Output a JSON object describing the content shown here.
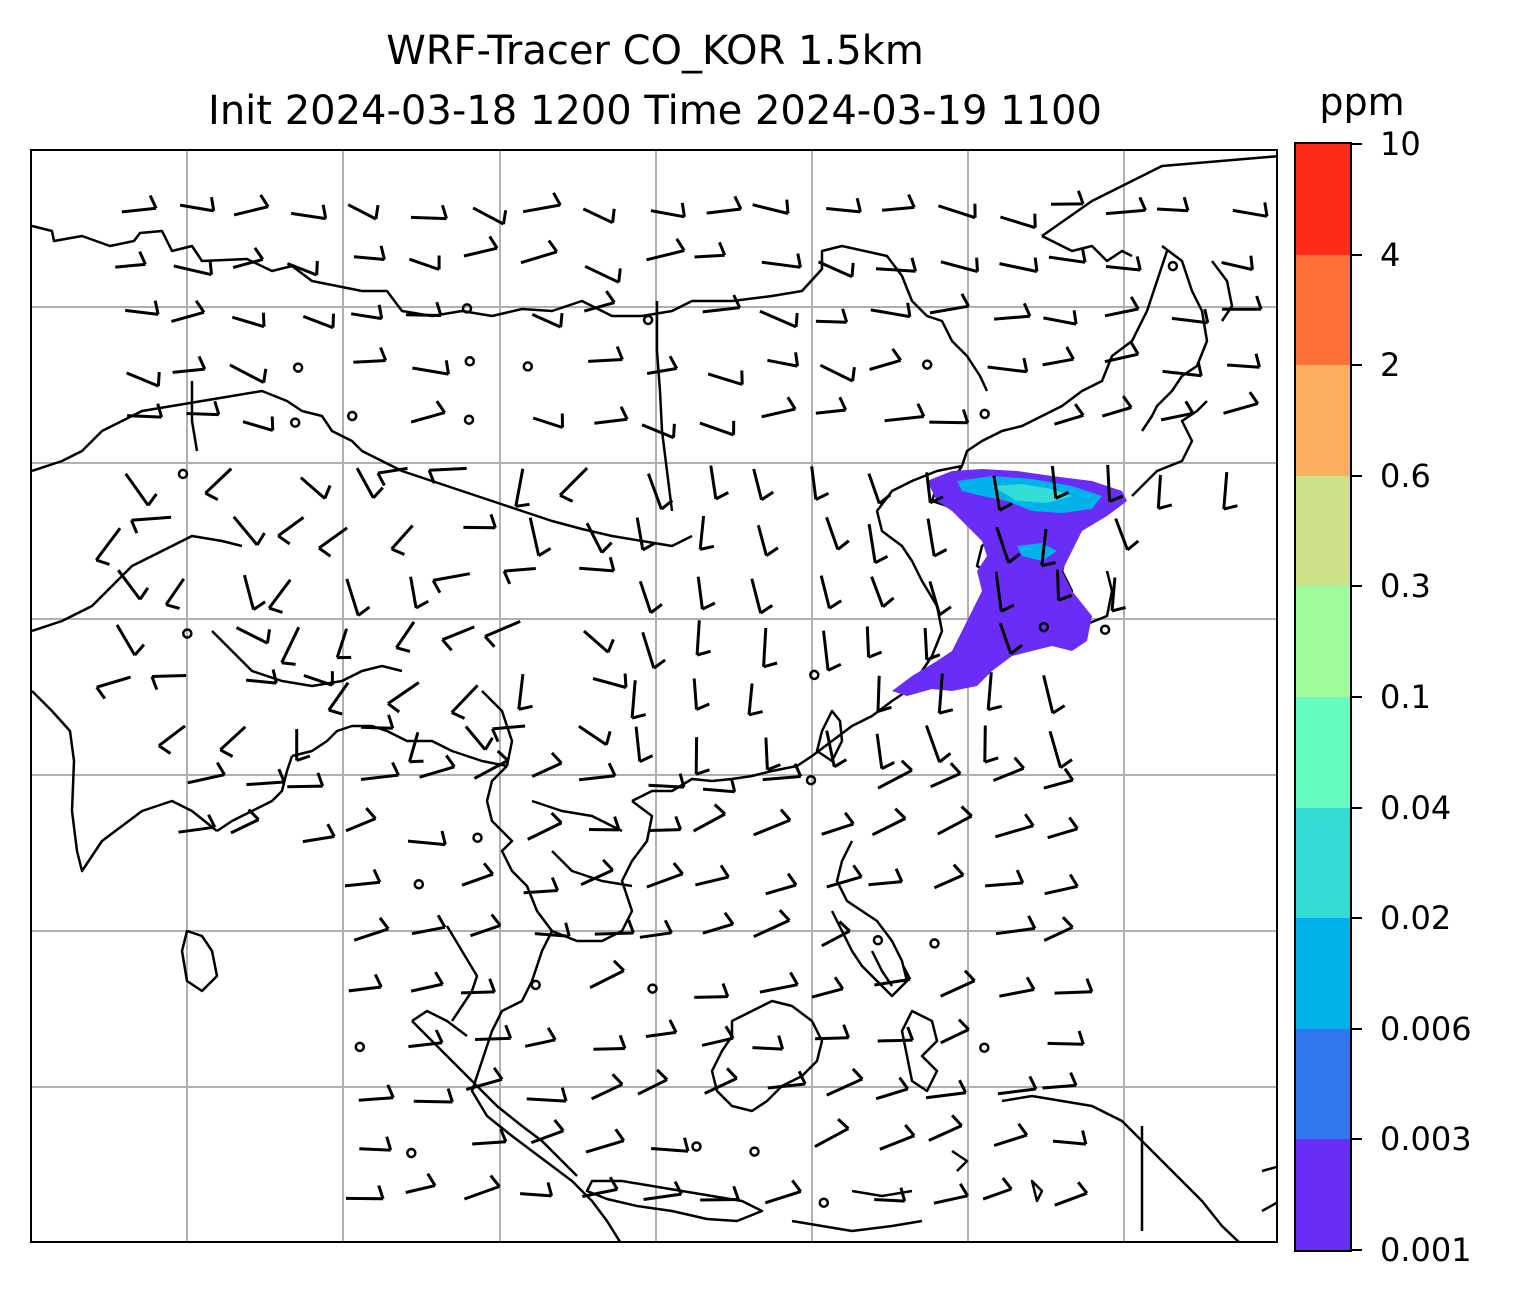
{
  "title": {
    "line1": "WRF-Tracer CO_KOR 1.5km",
    "line2": "Init 2024-03-18 1200 Time 2024-03-19 1100"
  },
  "colorbar": {
    "unit": "ppm",
    "levels": [
      "0.001",
      "0.003",
      "0.006",
      "0.02",
      "0.04",
      "0.1",
      "0.3",
      "0.6",
      "2",
      "4",
      "10"
    ],
    "colors": [
      "#6a2cf7",
      "#3377f0",
      "#00b2ea",
      "#33dcd4",
      "#66fcc0",
      "#9ffc9d",
      "#cfe188",
      "#fdaf61",
      "#fe713a",
      "#fe2b17"
    ]
  },
  "map": {
    "grid_lines": "on",
    "features": [
      "coastlines",
      "wind-barbs",
      "calm-circles",
      "tracer-plume"
    ]
  }
}
